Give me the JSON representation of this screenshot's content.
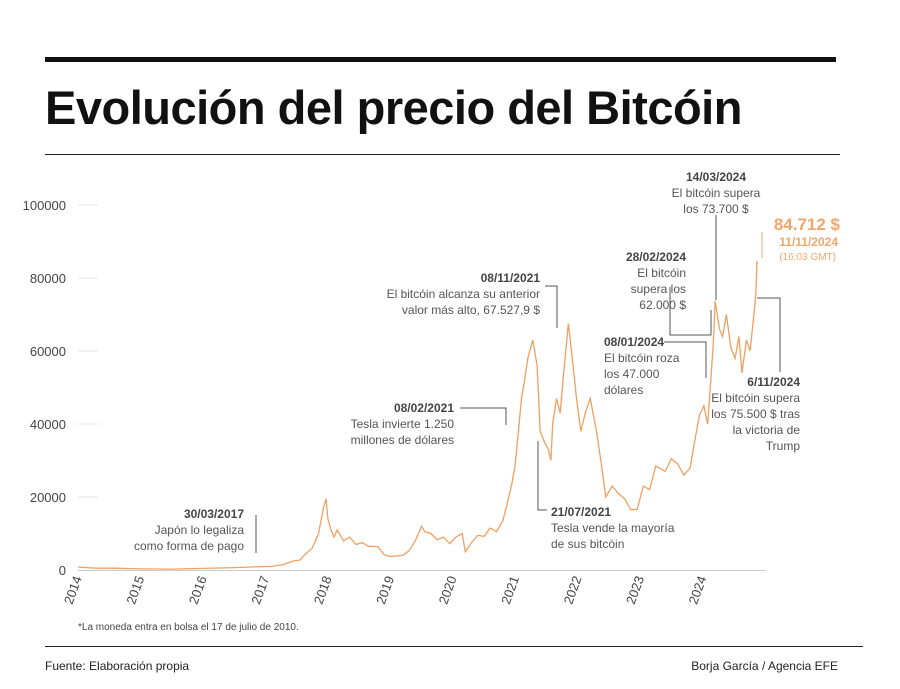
{
  "title": "Evolución del precio del Bitcóin",
  "footnote": "*La moneda entra en bolsa el 17 de julio de 2010.",
  "source": "Fuente: Elaboración propia",
  "credit": "Borja García / Agencia EFE",
  "colors": {
    "line": "#f0a060",
    "highlight": "#f2a66a",
    "text": "#333333"
  },
  "chart_data": {
    "type": "line",
    "title": "Evolución del precio del Bitcóin",
    "xlabel": "",
    "ylabel": "",
    "xlim": [
      2014.0,
      2024.95
    ],
    "ylim": [
      0,
      100000
    ],
    "grid": false,
    "y_ticks": [
      {
        "value": 0,
        "label": "0"
      },
      {
        "value": 20000,
        "label": "20000"
      },
      {
        "value": 40000,
        "label": "40000"
      },
      {
        "value": 60000,
        "label": "60000"
      },
      {
        "value": 80000,
        "label": "80000"
      },
      {
        "value": 100000,
        "label": "100000"
      }
    ],
    "x_ticks": [
      {
        "value": 2014,
        "label": "2014"
      },
      {
        "value": 2015,
        "label": "2015"
      },
      {
        "value": 2016,
        "label": "2016"
      },
      {
        "value": 2017,
        "label": "2017"
      },
      {
        "value": 2018,
        "label": "2018"
      },
      {
        "value": 2019,
        "label": "2019"
      },
      {
        "value": 2020,
        "label": "2020"
      },
      {
        "value": 2021,
        "label": "2021"
      },
      {
        "value": 2022,
        "label": "2022"
      },
      {
        "value": 2023,
        "label": "2023"
      },
      {
        "value": 2024,
        "label": "2024"
      }
    ],
    "series": [
      {
        "points": [
          [
            2014.0,
            800
          ],
          [
            2014.3,
            500
          ],
          [
            2014.6,
            500
          ],
          [
            2015.0,
            300
          ],
          [
            2015.5,
            250
          ],
          [
            2016.0,
            430
          ],
          [
            2016.5,
            650
          ],
          [
            2016.9,
            900
          ],
          [
            2017.1,
            1000
          ],
          [
            2017.3,
            1500
          ],
          [
            2017.45,
            2500
          ],
          [
            2017.55,
            2700
          ],
          [
            2017.65,
            4500
          ],
          [
            2017.75,
            6000
          ],
          [
            2017.85,
            10000
          ],
          [
            2017.93,
            17000
          ],
          [
            2017.97,
            19500
          ],
          [
            2018.0,
            14000
          ],
          [
            2018.05,
            11000
          ],
          [
            2018.1,
            9000
          ],
          [
            2018.15,
            11000
          ],
          [
            2018.25,
            8000
          ],
          [
            2018.35,
            9000
          ],
          [
            2018.45,
            7000
          ],
          [
            2018.55,
            7500
          ],
          [
            2018.65,
            6500
          ],
          [
            2018.8,
            6400
          ],
          [
            2018.9,
            4200
          ],
          [
            2019.0,
            3700
          ],
          [
            2019.2,
            4000
          ],
          [
            2019.3,
            5300
          ],
          [
            2019.4,
            8000
          ],
          [
            2019.5,
            12000
          ],
          [
            2019.55,
            10500
          ],
          [
            2019.65,
            10000
          ],
          [
            2019.75,
            8300
          ],
          [
            2019.85,
            9000
          ],
          [
            2019.95,
            7200
          ],
          [
            2020.05,
            9000
          ],
          [
            2020.15,
            10000
          ],
          [
            2020.2,
            5000
          ],
          [
            2020.3,
            7500
          ],
          [
            2020.4,
            9500
          ],
          [
            2020.5,
            9200
          ],
          [
            2020.6,
            11500
          ],
          [
            2020.7,
            10500
          ],
          [
            2020.8,
            13500
          ],
          [
            2020.87,
            18000
          ],
          [
            2020.95,
            24000
          ],
          [
            2021.0,
            29000
          ],
          [
            2021.05,
            38000
          ],
          [
            2021.1,
            47000
          ],
          [
            2021.15,
            52000
          ],
          [
            2021.2,
            58000
          ],
          [
            2021.28,
            63000
          ],
          [
            2021.35,
            56000
          ],
          [
            2021.4,
            38000
          ],
          [
            2021.47,
            35000
          ],
          [
            2021.53,
            33000
          ],
          [
            2021.57,
            30000
          ],
          [
            2021.6,
            40000
          ],
          [
            2021.66,
            47000
          ],
          [
            2021.72,
            43000
          ],
          [
            2021.78,
            55000
          ],
          [
            2021.85,
            67500
          ],
          [
            2021.92,
            57000
          ],
          [
            2021.98,
            47000
          ],
          [
            2022.05,
            38000
          ],
          [
            2022.12,
            43000
          ],
          [
            2022.2,
            47000
          ],
          [
            2022.3,
            38000
          ],
          [
            2022.37,
            30000
          ],
          [
            2022.45,
            20000
          ],
          [
            2022.55,
            23000
          ],
          [
            2022.65,
            21000
          ],
          [
            2022.75,
            19500
          ],
          [
            2022.85,
            16500
          ],
          [
            2022.95,
            16600
          ],
          [
            2023.05,
            23000
          ],
          [
            2023.15,
            22000
          ],
          [
            2023.25,
            28500
          ],
          [
            2023.4,
            27000
          ],
          [
            2023.5,
            30500
          ],
          [
            2023.6,
            29000
          ],
          [
            2023.7,
            26000
          ],
          [
            2023.8,
            28000
          ],
          [
            2023.87,
            35000
          ],
          [
            2023.95,
            42500
          ],
          [
            2024.02,
            45000
          ],
          [
            2024.08,
            40000
          ],
          [
            2024.13,
            52000
          ],
          [
            2024.17,
            62000
          ],
          [
            2024.2,
            73700
          ],
          [
            2024.27,
            66000
          ],
          [
            2024.32,
            64000
          ],
          [
            2024.38,
            70000
          ],
          [
            2024.45,
            61000
          ],
          [
            2024.52,
            58000
          ],
          [
            2024.58,
            64000
          ],
          [
            2024.63,
            54000
          ],
          [
            2024.7,
            63000
          ],
          [
            2024.76,
            60000
          ],
          [
            2024.82,
            70000
          ],
          [
            2024.85,
            75500
          ],
          [
            2024.87,
            84712
          ]
        ]
      }
    ],
    "highlight": {
      "value": "84.712 $",
      "date": "11/11/2024",
      "time": "(16:03 GMT)"
    },
    "annotations": [
      {
        "date": "30/03/2017",
        "lines": [
          "Japón lo legaliza",
          "como forma de pago"
        ]
      },
      {
        "date": "08/02/2021",
        "lines": [
          "Tesla invierte 1.250",
          "millones de dólares"
        ]
      },
      {
        "date": "08/11/2021",
        "lines": [
          "El bitcóin alcanza su anterior",
          "valor más alto, 67.527,9 $"
        ]
      },
      {
        "date": "21/07/2021",
        "lines": [
          "Tesla vende la mayoría",
          "de sus bitcóin"
        ]
      },
      {
        "date": "08/01/2024",
        "lines": [
          "El bitcóin roza",
          "los 47.000",
          "dólares"
        ]
      },
      {
        "date": "28/02/2024",
        "lines": [
          "El bitcóin",
          "supera los",
          "62.000 $"
        ]
      },
      {
        "date": "14/03/2024",
        "lines": [
          "El bitcóin supera",
          "los 73.700 $"
        ]
      },
      {
        "date": "6/11/2024",
        "lines": [
          "El bitcóin supera",
          "los 75.500 $ tras",
          "la victoria de",
          "Trump"
        ]
      }
    ]
  }
}
